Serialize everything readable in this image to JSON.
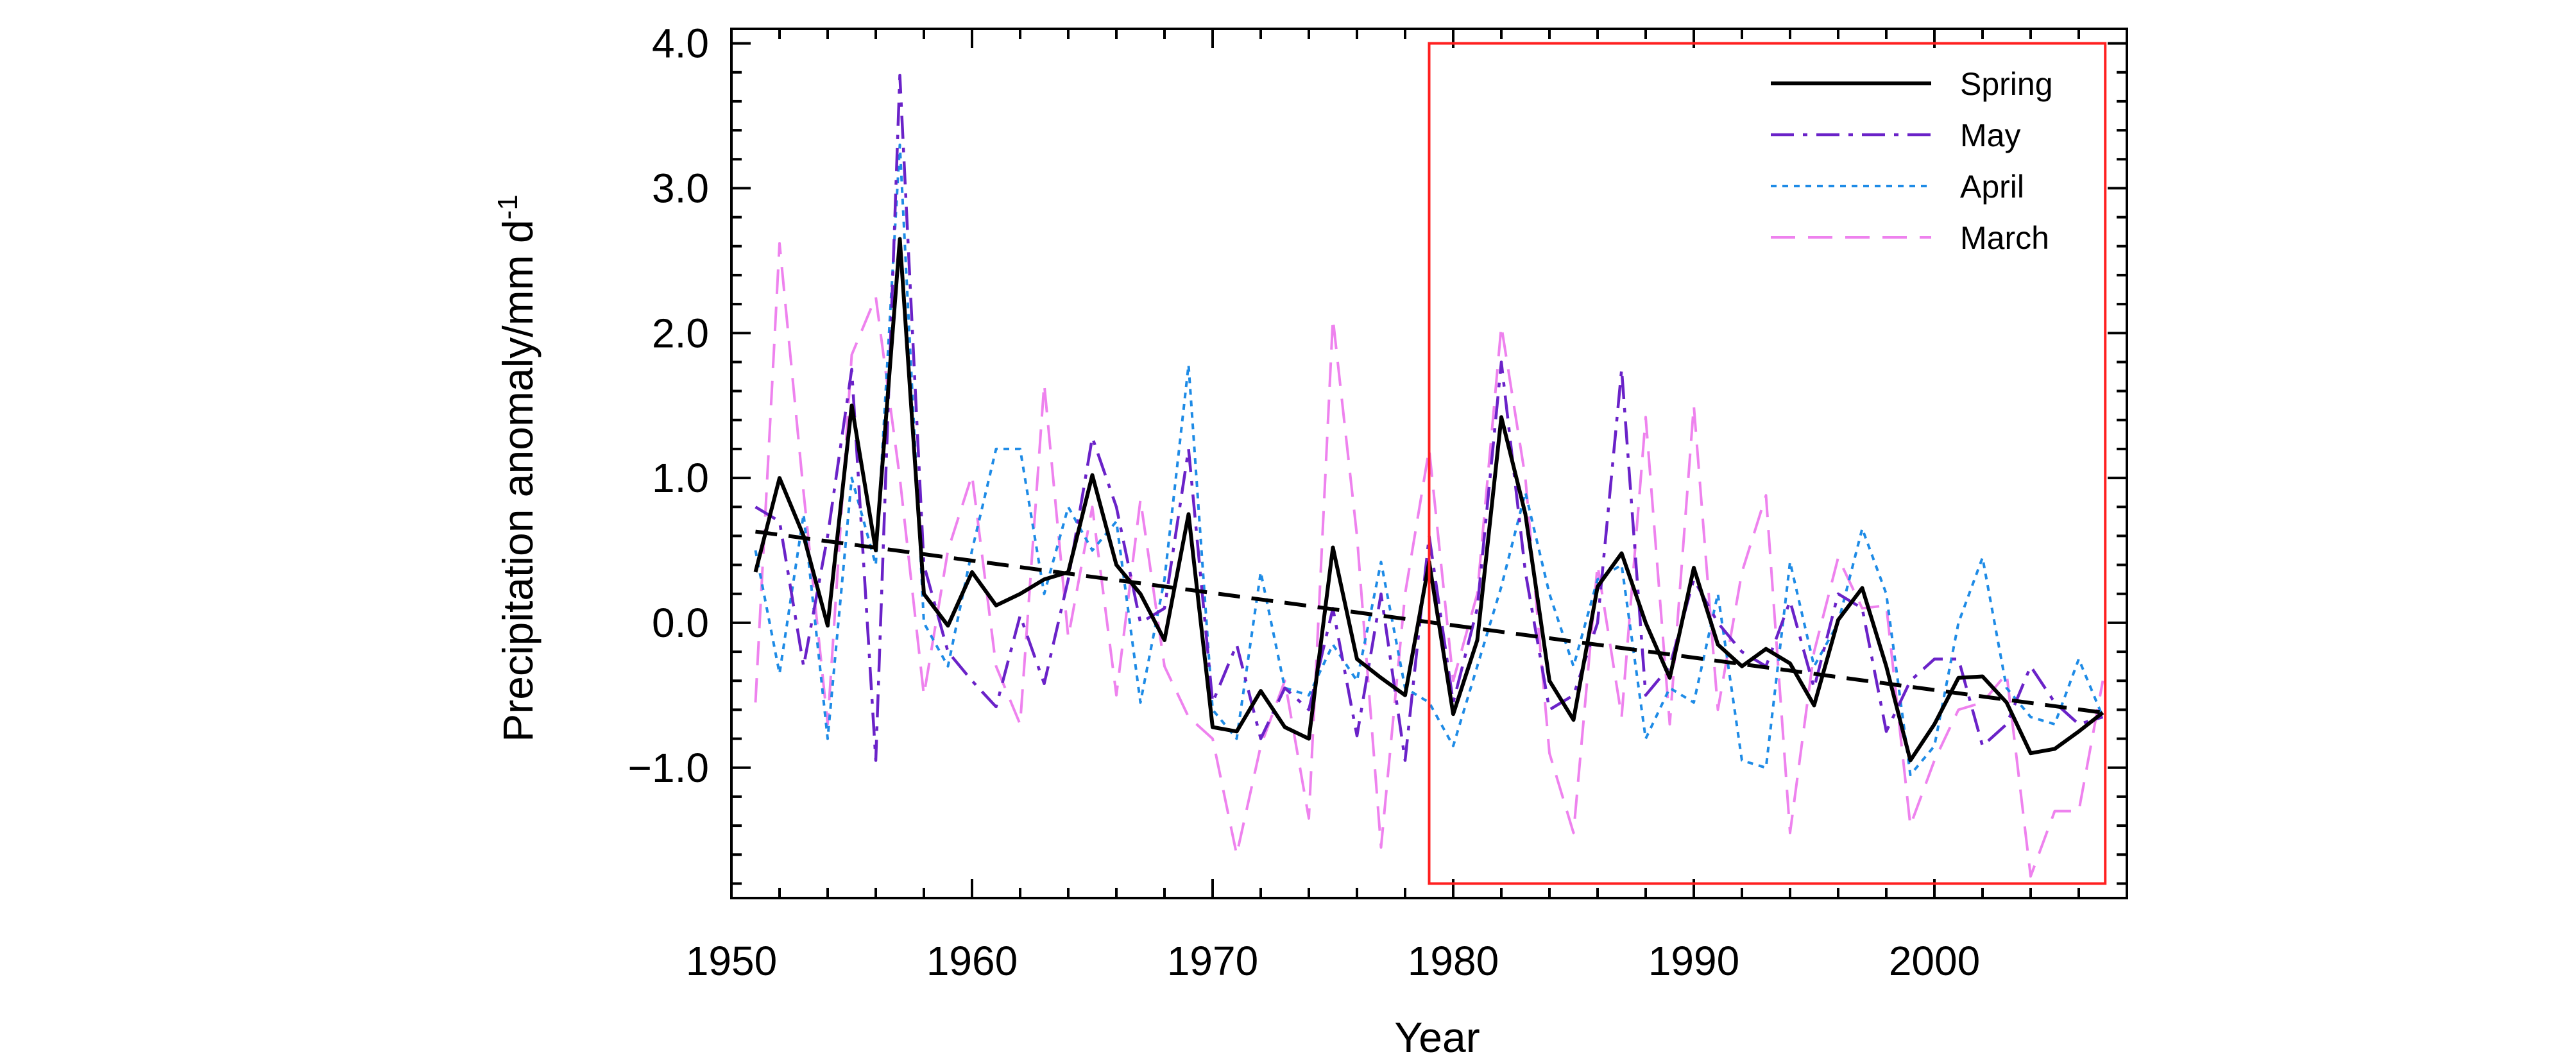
{
  "chart_data": {
    "type": "line",
    "xlabel": "Year",
    "ylabel": "Precipitation anomaly/mm d",
    "ylabel_superscript": "-1",
    "xlim": [
      1950,
      2008
    ],
    "ylim": [
      -1.9,
      4.1
    ],
    "x_ticks": [
      1950,
      1960,
      1970,
      1980,
      1990,
      2000
    ],
    "x_tick_labels": [
      "1950",
      "1960",
      "1970",
      "1980",
      "1990",
      "2000"
    ],
    "y_ticks": [
      -1.0,
      0.0,
      1.0,
      2.0,
      3.0,
      4.0
    ],
    "y_tick_labels": [
      "−1.0",
      "0.0",
      "1.0",
      "2.0",
      "3.0",
      "4.0"
    ],
    "legend_position": "top-right",
    "years": [
      1951,
      1952,
      1953,
      1954,
      1955,
      1956,
      1957,
      1958,
      1959,
      1960,
      1961,
      1962,
      1963,
      1964,
      1965,
      1966,
      1967,
      1968,
      1969,
      1970,
      1971,
      1972,
      1973,
      1974,
      1975,
      1976,
      1977,
      1978,
      1979,
      1980,
      1981,
      1982,
      1983,
      1984,
      1985,
      1986,
      1987,
      1988,
      1989,
      1990,
      1991,
      1992,
      1993,
      1994,
      1995,
      1996,
      1997,
      1998,
      1999,
      2000,
      2001,
      2002,
      2003,
      2004,
      2005,
      2006,
      2007
    ],
    "series": [
      {
        "name": "Spring",
        "color": "#000000",
        "dash": "solid",
        "values": [
          0.35,
          1.0,
          0.6,
          -0.02,
          1.5,
          0.5,
          2.65,
          0.2,
          -0.02,
          0.35,
          0.12,
          0.2,
          0.3,
          0.35,
          1.02,
          0.4,
          0.2,
          -0.12,
          0.75,
          -0.72,
          -0.75,
          -0.47,
          -0.72,
          -0.8,
          0.52,
          -0.25,
          -0.38,
          -0.5,
          0.42,
          -0.63,
          -0.12,
          1.42,
          0.75,
          -0.4,
          -0.67,
          0.25,
          0.48,
          0.0,
          -0.38,
          0.38,
          -0.15,
          -0.3,
          -0.18,
          -0.28,
          -0.57,
          0.02,
          0.24,
          -0.3,
          -0.95,
          -0.7,
          -0.38,
          -0.37,
          -0.55,
          -0.9,
          -0.87,
          -0.75,
          -0.62
        ]
      },
      {
        "name": "May",
        "color": "#6a22c8",
        "dash": "dashdot",
        "values": [
          0.8,
          0.7,
          -0.3,
          0.6,
          1.75,
          -0.95,
          3.78,
          0.4,
          -0.2,
          -0.4,
          -0.58,
          0.05,
          -0.42,
          0.3,
          1.28,
          0.8,
          0.0,
          0.1,
          1.2,
          -0.55,
          -0.15,
          -0.8,
          -0.45,
          -0.6,
          0.1,
          -0.78,
          0.2,
          -0.95,
          0.6,
          -0.55,
          0.1,
          1.8,
          0.35,
          -0.6,
          -0.5,
          0.0,
          1.75,
          -0.5,
          -0.3,
          0.3,
          0.0,
          -0.2,
          -0.3,
          0.15,
          -0.45,
          0.2,
          0.1,
          -0.75,
          -0.4,
          -0.25,
          -0.25,
          -0.85,
          -0.7,
          -0.3,
          -0.55,
          -0.7,
          -0.65
        ]
      },
      {
        "name": "April",
        "color": "#1e8be6",
        "dash": "dotted",
        "values": [
          0.5,
          -0.35,
          0.75,
          -0.8,
          1.0,
          0.4,
          3.3,
          0.0,
          -0.3,
          0.5,
          1.2,
          1.2,
          0.2,
          0.8,
          0.5,
          0.7,
          -0.55,
          0.3,
          1.78,
          -0.6,
          -0.8,
          0.35,
          -0.45,
          -0.5,
          -0.15,
          -0.4,
          0.42,
          -0.45,
          -0.55,
          -0.85,
          -0.3,
          0.25,
          0.9,
          0.2,
          -0.3,
          0.3,
          0.4,
          -0.8,
          -0.45,
          -0.55,
          0.2,
          -0.95,
          -1.0,
          0.42,
          -0.3,
          0.0,
          0.65,
          0.2,
          -1.05,
          -0.85,
          0.0,
          0.45,
          -0.45,
          -0.65,
          -0.7,
          -0.25,
          -0.65
        ]
      },
      {
        "name": "March",
        "color": "#ee82ee",
        "dash": "dashed",
        "values": [
          -0.55,
          2.62,
          0.9,
          -0.7,
          1.85,
          2.25,
          1.0,
          -0.5,
          0.5,
          1.02,
          -0.3,
          -0.7,
          1.65,
          -0.1,
          0.8,
          -0.5,
          0.85,
          -0.3,
          -0.65,
          -0.8,
          -1.6,
          -0.85,
          -0.4,
          -1.35,
          2.1,
          0.6,
          -1.55,
          0.2,
          1.2,
          -0.4,
          0.2,
          2.05,
          1.0,
          -0.9,
          -1.45,
          0.4,
          -0.65,
          1.42,
          -0.7,
          1.5,
          -0.6,
          0.35,
          0.88,
          -1.45,
          -0.2,
          0.45,
          0.1,
          0.12,
          -1.4,
          -0.95,
          -0.6,
          -0.55,
          -0.35,
          -1.75,
          -1.3,
          -1.3,
          -0.4
        ]
      }
    ],
    "trend": {
      "color": "#000000",
      "dash": "dashed",
      "x": [
        1951,
        2007
      ],
      "y": [
        0.63,
        -0.62
      ]
    },
    "highlight_box": {
      "color": "#ff2020",
      "x_range": [
        1979,
        2007.1
      ],
      "y_range": [
        -1.8,
        4.0
      ]
    }
  }
}
